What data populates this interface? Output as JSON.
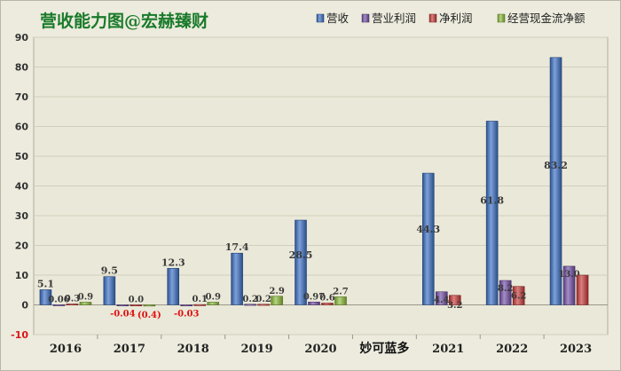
{
  "chart_data": {
    "type": "bar",
    "title": "营收能力图@宏赫臻财",
    "watermark": "妙可蓝多",
    "categories": [
      "2016",
      "2017",
      "2018",
      "2019",
      "2020",
      "2021",
      "2022",
      "2023"
    ],
    "ylim": [
      -10,
      90
    ],
    "yticks": [
      -10,
      0,
      10,
      20,
      30,
      40,
      50,
      60,
      70,
      80,
      90
    ],
    "grid": true,
    "legend_position": "top-right",
    "series": [
      {
        "name": "营收",
        "color": "#3a6fc4",
        "values": [
          5.1,
          9.5,
          12.3,
          17.4,
          28.5,
          44.3,
          61.8,
          83.2
        ],
        "labels": [
          "5.1",
          "9.5",
          "12.3",
          "17.4",
          "28.5",
          "44.3",
          "61.8",
          "83.2"
        ]
      },
      {
        "name": "营业利润",
        "color": "#7350a8",
        "values": [
          0.06,
          -0.04,
          -0.03,
          0.2,
          0.97,
          4.4,
          8.2,
          13.0
        ],
        "labels": [
          "0.06",
          "-0.04",
          "-0.03",
          "0.2",
          "0.97",
          "4.4",
          "8.2",
          "13.0"
        ]
      },
      {
        "name": "净利润",
        "color": "#c83a38",
        "values": [
          0.3,
          0.0,
          0.1,
          0.2,
          0.6,
          3.2,
          6.2,
          10
        ],
        "labels": [
          "0.3",
          "0.0",
          "0.1",
          "0.2",
          "0.6",
          "3.2",
          "6.2",
          ""
        ]
      },
      {
        "name": "经营现金流净额",
        "color": "#8cbd3a",
        "values": [
          0.9,
          -0.4,
          0.9,
          2.9,
          2.7,
          null,
          null,
          null
        ],
        "labels": [
          "0.9",
          "(0.4)",
          "0.9",
          "2.9",
          "2.7",
          "",
          "",
          ""
        ]
      }
    ]
  }
}
